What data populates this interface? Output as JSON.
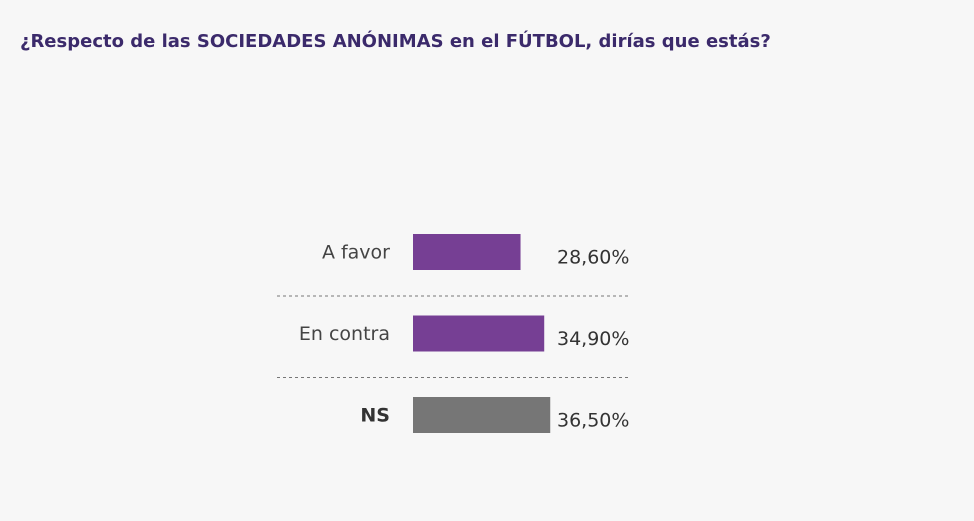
{
  "chart_data": {
    "type": "bar",
    "orientation": "horizontal",
    "title": "¿Respecto de las SOCIEDADES ANÓNIMAS en el FÚTBOL, dirías que estás?",
    "categories": [
      "A favor",
      "En contra",
      "NS"
    ],
    "values": [
      28.6,
      34.9,
      36.5
    ],
    "value_labels": [
      "28,60%",
      "34,90%",
      "36,50%"
    ],
    "colors": [
      "#763f94",
      "#763f94",
      "#767676"
    ]
  }
}
